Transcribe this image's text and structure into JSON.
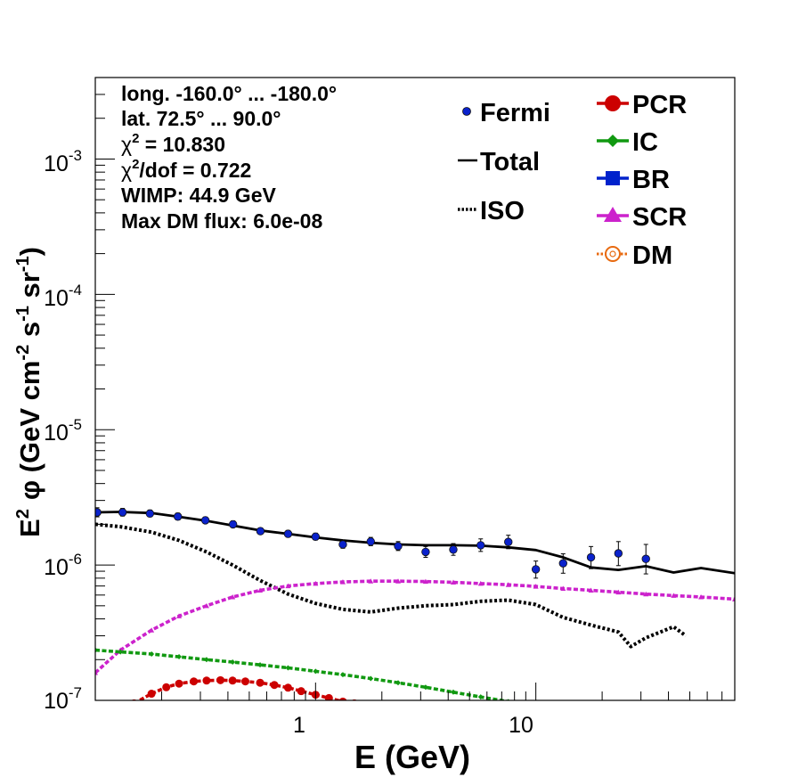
{
  "chart_data": {
    "type": "line",
    "title": "",
    "xlabel": "E (GeV)",
    "ylabel": "E² φ (GeV cm⁻² s⁻¹ sr⁻¹)",
    "ylabel_parts": {
      "e": "E",
      "sup2": "2",
      "phi": "φ",
      "open": " (GeV cm",
      "sup_m2": "-2",
      "s": " s",
      "sup_m1a": "-1",
      "sr": " sr",
      "sup_m1b": "-1",
      "close": ")"
    },
    "xscale": "log",
    "yscale": "log",
    "xlim": [
      0.1,
      80
    ],
    "ylim": [
      1e-07,
      0.004
    ],
    "grid": false,
    "x_ticks": [
      {
        "value": 1,
        "label": "1"
      },
      {
        "value": 10,
        "label": "10"
      }
    ],
    "y_ticks": [
      {
        "value": 1e-07,
        "base": "10",
        "exp": "-7"
      },
      {
        "value": 1e-06,
        "base": "10",
        "exp": "-6"
      },
      {
        "value": 1e-05,
        "base": "10",
        "exp": "-5"
      },
      {
        "value": 0.0001,
        "base": "10",
        "exp": "-4"
      },
      {
        "value": 0.001,
        "base": "10",
        "exp": "-3"
      }
    ],
    "annotations": {
      "long": "long. -160.0° ... -180.0°",
      "lat": "lat. 72.5° ... 90.0°",
      "chi2_sym": "χ",
      "chi2_sup": "2",
      "chi2_val": " = 10.830",
      "chidof_sym": "χ",
      "chidof_sup": "2",
      "chidof_val": "/dof = 0.722",
      "wimp": "WIMP: 44.9 GeV",
      "maxdm": "Max DM flux: 6.0e-08"
    },
    "legend_placement": "top-right",
    "legend": {
      "fermi": "Fermi",
      "total": "Total",
      "iso": "ISO",
      "pcr": "PCR",
      "ic": "IC",
      "br": "BR",
      "scr": "SCR",
      "dm": "DM"
    },
    "colors": {
      "fermi": "#0a22cc",
      "total": "#000000",
      "iso": "#000000",
      "pcr": "#cc0000",
      "ic": "#119911",
      "br": "#0022cc",
      "scr": "#cc22cc",
      "dm": "#e86a10"
    },
    "series": [
      {
        "key": "fermi",
        "name": "Fermi",
        "points": [
          [
            0.102,
            2.45e-06,
            2.65e-06,
            2.27e-06
          ],
          [
            0.133,
            2.45e-06,
            2.62e-06,
            2.3e-06
          ],
          [
            0.177,
            2.4e-06,
            2.55e-06,
            2.27e-06
          ],
          [
            0.237,
            2.28e-06,
            2.42e-06,
            2.16e-06
          ],
          [
            0.316,
            2.14e-06,
            2.26e-06,
            2.03e-06
          ],
          [
            0.422,
            2e-06,
            2.12e-06,
            1.9e-06
          ],
          [
            0.562,
            1.78e-06,
            1.88e-06,
            1.69e-06
          ],
          [
            0.75,
            1.7e-06,
            1.8e-06,
            1.61e-06
          ],
          [
            1.0,
            1.62e-06,
            1.72e-06,
            1.53e-06
          ],
          [
            1.33,
            1.42e-06,
            1.52e-06,
            1.33e-06
          ],
          [
            1.78,
            1.49e-06,
            1.6e-06,
            1.39e-06
          ],
          [
            2.37,
            1.38e-06,
            1.49e-06,
            1.28e-06
          ],
          [
            3.16,
            1.25e-06,
            1.37e-06,
            1.14e-06
          ],
          [
            4.22,
            1.3e-06,
            1.44e-06,
            1.18e-06
          ],
          [
            5.62,
            1.4e-06,
            1.56e-06,
            1.26e-06
          ],
          [
            7.5,
            1.48e-06,
            1.66e-06,
            1.32e-06
          ],
          [
            10.0,
            9.3e-07,
            1.07e-06,
            8e-07
          ],
          [
            13.3,
            1.03e-06,
            1.21e-06,
            8.7e-07
          ],
          [
            17.8,
            1.14e-06,
            1.37e-06,
            9.4e-07
          ],
          [
            23.7,
            1.22e-06,
            1.49e-06,
            9.9e-07
          ],
          [
            31.6,
            1.11e-06,
            1.42e-06,
            8.6e-07
          ]
        ]
      },
      {
        "key": "total",
        "name": "Total",
        "style": "solid",
        "x": [
          0.1,
          0.13,
          0.18,
          0.24,
          0.32,
          0.42,
          0.56,
          0.75,
          1.0,
          1.33,
          1.78,
          2.37,
          3.16,
          4.22,
          5.62,
          7.5,
          10.0,
          13.3,
          17.8,
          23.7,
          31.6,
          42.2,
          56.2,
          80
        ],
        "y": [
          2.45e-06,
          2.47e-06,
          2.42e-06,
          2.27e-06,
          2.12e-06,
          1.96e-06,
          1.8e-06,
          1.7e-06,
          1.6e-06,
          1.52e-06,
          1.46e-06,
          1.42e-06,
          1.4e-06,
          1.4e-06,
          1.39e-06,
          1.35e-06,
          1.29e-06,
          1.14e-06,
          9.6e-07,
          9.2e-07,
          9.8e-07,
          8.8e-07,
          9.5e-07,
          8.7e-07
        ]
      },
      {
        "key": "iso",
        "name": "ISO",
        "style": "dotted",
        "x": [
          0.1,
          0.13,
          0.18,
          0.24,
          0.32,
          0.42,
          0.56,
          0.75,
          1.0,
          1.33,
          1.78,
          2.37,
          3.16,
          4.22,
          5.62,
          7.5,
          10.0,
          13.3,
          17.8,
          23.7,
          27,
          31.6,
          42.2,
          48
        ],
        "y": [
          2e-06,
          1.92e-06,
          1.75e-06,
          1.52e-06,
          1.25e-06,
          1e-06,
          7.7e-07,
          6.1e-07,
          5.2e-07,
          4.7e-07,
          4.5e-07,
          4.8e-07,
          5e-07,
          5.1e-07,
          5.4e-07,
          5.5e-07,
          5.1e-07,
          4.1e-07,
          3.6e-07,
          3.2e-07,
          2.5e-07,
          2.9e-07,
          3.5e-07,
          3e-07
        ]
      },
      {
        "key": "scr",
        "name": "SCR",
        "style": "dashed",
        "marker": "triangle",
        "x": [
          0.1,
          0.13,
          0.18,
          0.24,
          0.32,
          0.42,
          0.56,
          0.75,
          1.0,
          1.33,
          1.78,
          2.37,
          3.16,
          4.22,
          5.62,
          7.5,
          10.0,
          13.3,
          17.8,
          23.7,
          31.6,
          42.2,
          56.2,
          80
        ],
        "y": [
          1.6e-07,
          2.35e-07,
          3.3e-07,
          4.2e-07,
          5e-07,
          5.8e-07,
          6.5e-07,
          7e-07,
          7.3e-07,
          7.5e-07,
          7.6e-07,
          7.6e-07,
          7.55e-07,
          7.45e-07,
          7.3e-07,
          7.15e-07,
          6.95e-07,
          6.7e-07,
          6.5e-07,
          6.3e-07,
          6.1e-07,
          5.95e-07,
          5.8e-07,
          5.6e-07
        ]
      },
      {
        "key": "ic",
        "name": "IC",
        "style": "dashed",
        "marker": "diamond",
        "x": [
          0.1,
          0.13,
          0.18,
          0.24,
          0.32,
          0.42,
          0.56,
          0.75,
          1.0,
          1.33,
          1.78,
          2.37,
          3.16,
          4.22,
          5.62,
          7.5,
          8.5
        ],
        "y": [
          2.35e-07,
          2.28e-07,
          2.2e-07,
          2.1e-07,
          2e-07,
          1.92e-07,
          1.83e-07,
          1.74e-07,
          1.64e-07,
          1.55e-07,
          1.45e-07,
          1.35e-07,
          1.25e-07,
          1.15e-07,
          1.06e-07,
          9.8e-08,
          9.5e-08
        ]
      },
      {
        "key": "pcr",
        "name": "PCR",
        "style": "dashed",
        "marker": "circle",
        "x": [
          0.15,
          0.18,
          0.21,
          0.24,
          0.28,
          0.32,
          0.37,
          0.42,
          0.48,
          0.56,
          0.65,
          0.75,
          0.86,
          1.0,
          1.15,
          1.33,
          1.5
        ],
        "y": [
          9.5e-08,
          1.12e-07,
          1.25e-07,
          1.33e-07,
          1.38e-07,
          1.4e-07,
          1.41e-07,
          1.4e-07,
          1.38e-07,
          1.35e-07,
          1.3e-07,
          1.24e-07,
          1.17e-07,
          1.1e-07,
          1.04e-07,
          9.8e-08,
          9.5e-08
        ]
      }
    ]
  }
}
